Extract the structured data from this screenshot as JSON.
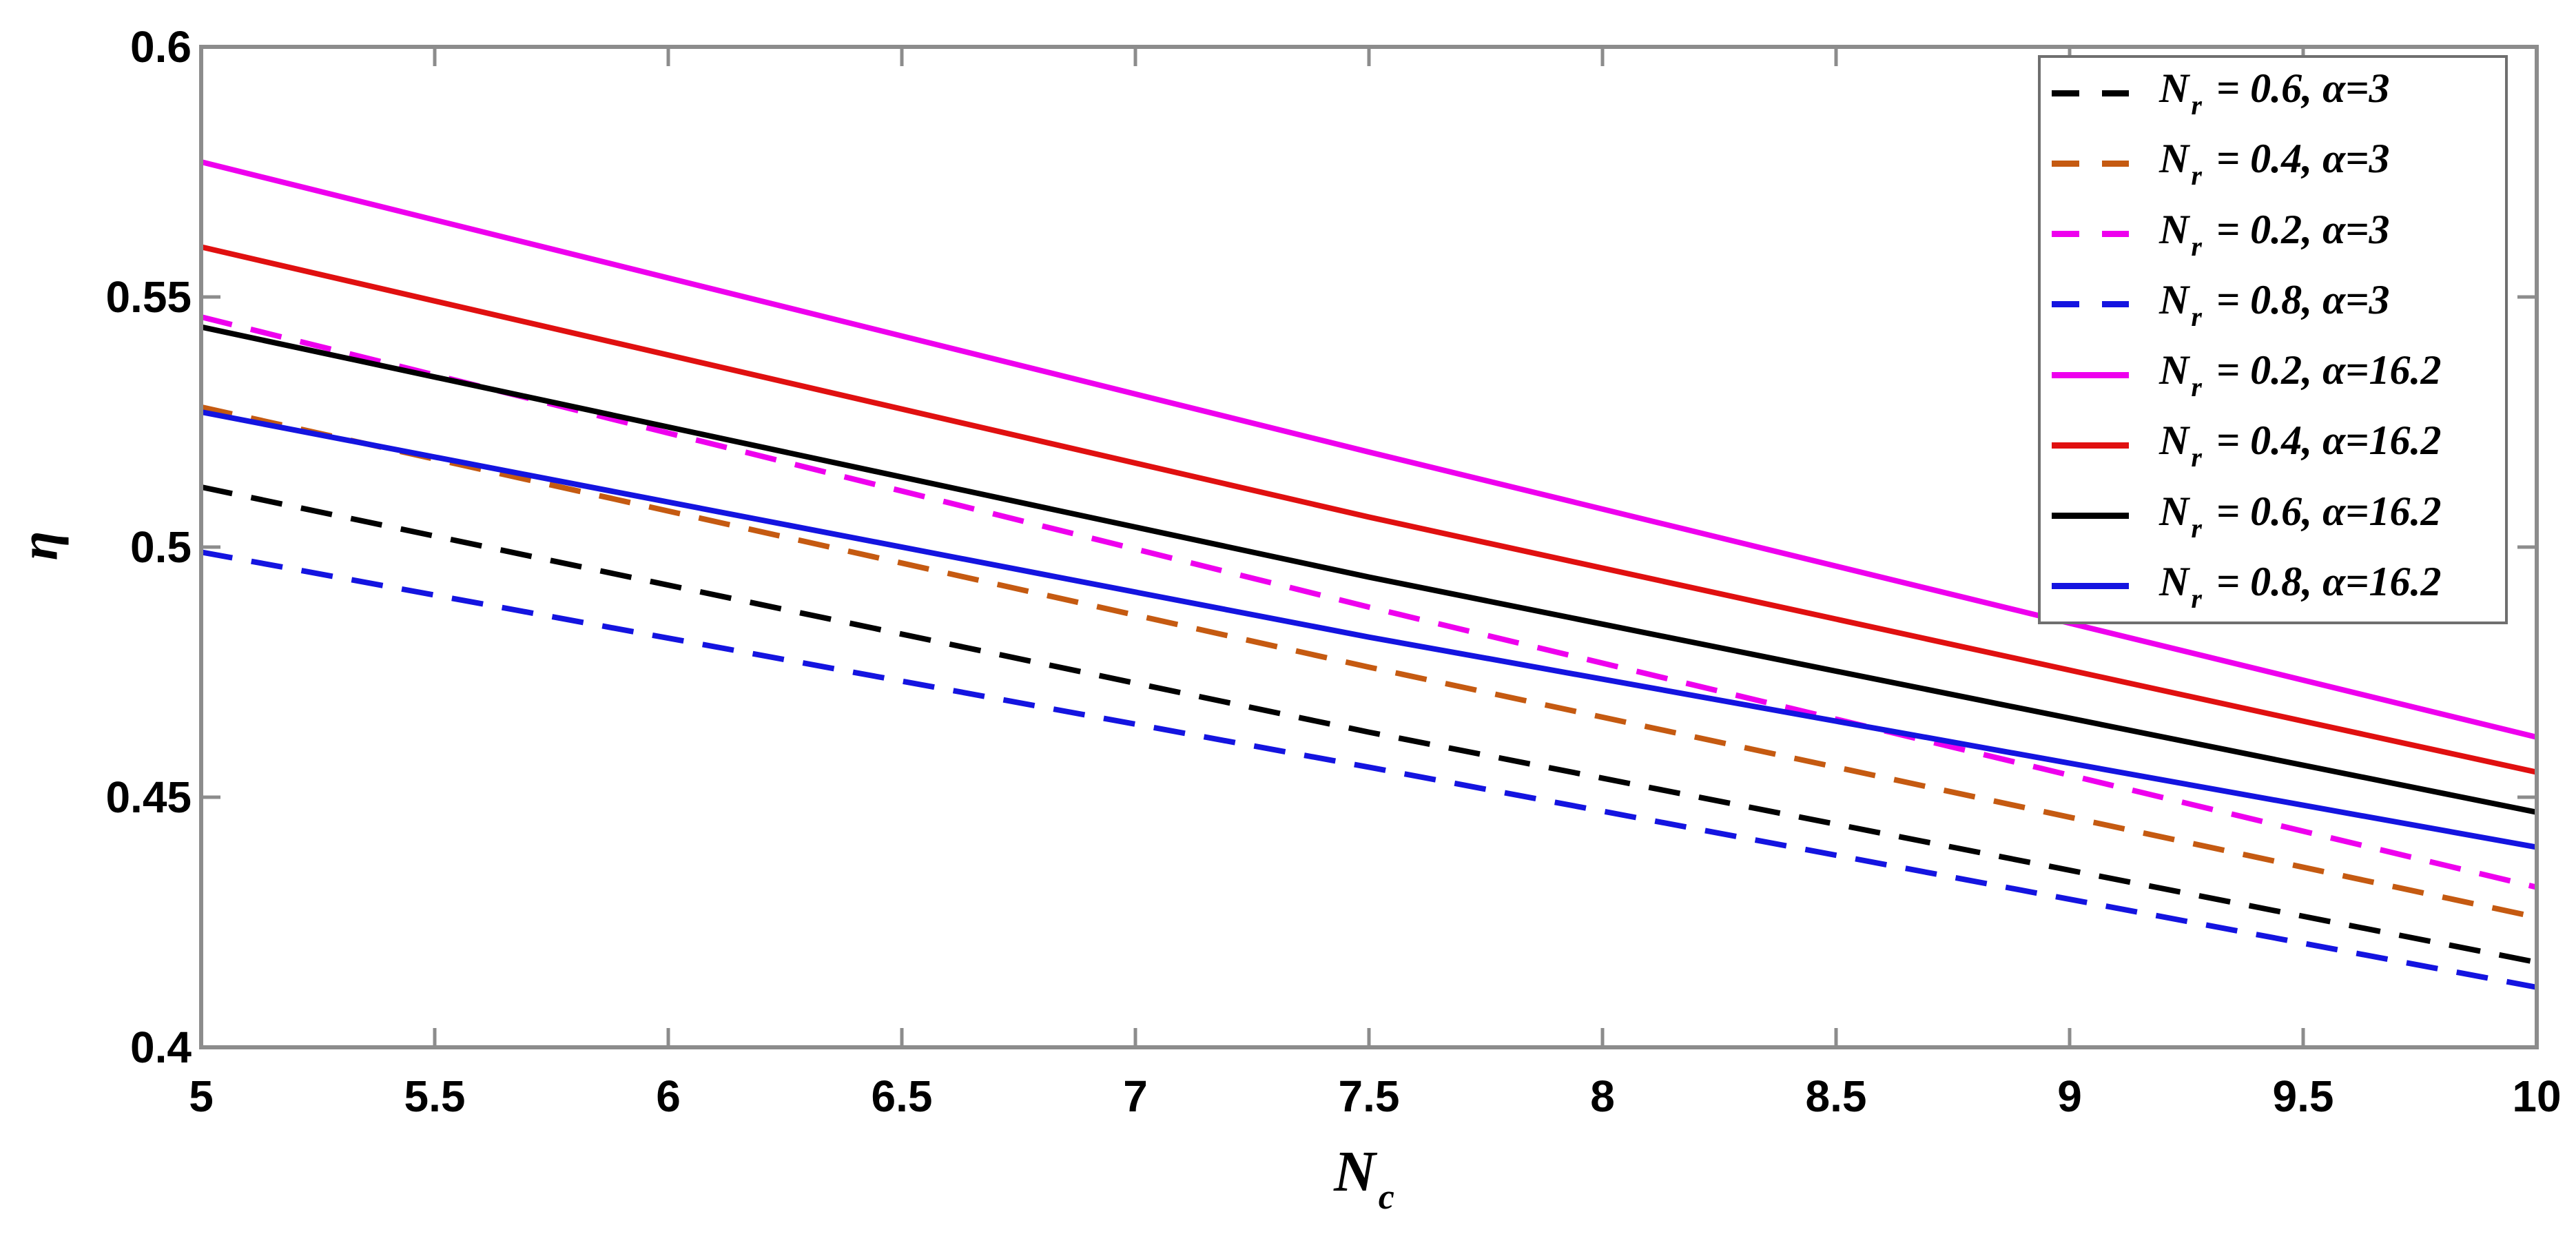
{
  "chart_data": {
    "type": "line",
    "title": "",
    "xlabel": "N_c",
    "xlabel_base": "N",
    "xlabel_sub": "c",
    "ylabel": "η",
    "xlim": [
      5,
      10
    ],
    "ylim": [
      0.4,
      0.6
    ],
    "grid": false,
    "legend_position": "top-right",
    "axis_color": "#8c8c8c",
    "x": [
      5,
      7.5,
      10
    ],
    "x_tick_values": [
      5,
      5.5,
      6,
      6.5,
      7,
      7.5,
      8,
      8.5,
      9,
      9.5,
      10
    ],
    "x_tick_labels": [
      "5",
      "5.5",
      "6",
      "6.5",
      "7",
      "7.5",
      "8",
      "8.5",
      "9",
      "9.5",
      "10"
    ],
    "y_tick_values": [
      0.4,
      0.45,
      0.5,
      0.55,
      0.6
    ],
    "y_tick_labels": [
      "0.4",
      "0.45",
      "0.5",
      "0.55",
      "0.6"
    ],
    "legend_symbol_base": "N",
    "legend_symbol_sub": "r",
    "series": [
      {
        "name": "N_r = 0.6, α=3",
        "label_rest": " = 0.6, α=3",
        "color": "#000000",
        "style": "dashed",
        "values": [
          0.512,
          0.463,
          0.417
        ]
      },
      {
        "name": "N_r = 0.4, α=3",
        "label_rest": " = 0.4, α=3",
        "color": "#c55a11",
        "style": "dashed",
        "values": [
          0.528,
          0.476,
          0.426
        ]
      },
      {
        "name": "N_r = 0.2, α=3",
        "label_rest": " = 0.2, α=3",
        "color": "#ee00ee",
        "style": "dashed",
        "values": [
          0.546,
          0.488,
          0.432
        ]
      },
      {
        "name": "N_r = 0.8, α=3",
        "label_rest": " = 0.8, α=3",
        "color": "#1414e0",
        "style": "dashed",
        "values": [
          0.499,
          0.456,
          0.412
        ]
      },
      {
        "name": "N_r = 0.2, α=16.2",
        "label_rest": " = 0.2, α=16.2",
        "color": "#ee00ee",
        "style": "solid",
        "values": [
          0.577,
          0.519,
          0.462
        ]
      },
      {
        "name": "N_r = 0.4, α=16.2",
        "label_rest": " = 0.4, α=16.2",
        "color": "#e01010",
        "style": "solid",
        "values": [
          0.56,
          0.506,
          0.455
        ]
      },
      {
        "name": "N_r = 0.6, α=16.2",
        "label_rest": " = 0.6, α=16.2",
        "color": "#000000",
        "style": "solid",
        "values": [
          0.544,
          0.494,
          0.447
        ]
      },
      {
        "name": "N_r = 0.8, α=16.2",
        "label_rest": " = 0.8, α=16.2",
        "color": "#1414e0",
        "style": "solid",
        "values": [
          0.527,
          0.482,
          0.44
        ]
      }
    ]
  }
}
